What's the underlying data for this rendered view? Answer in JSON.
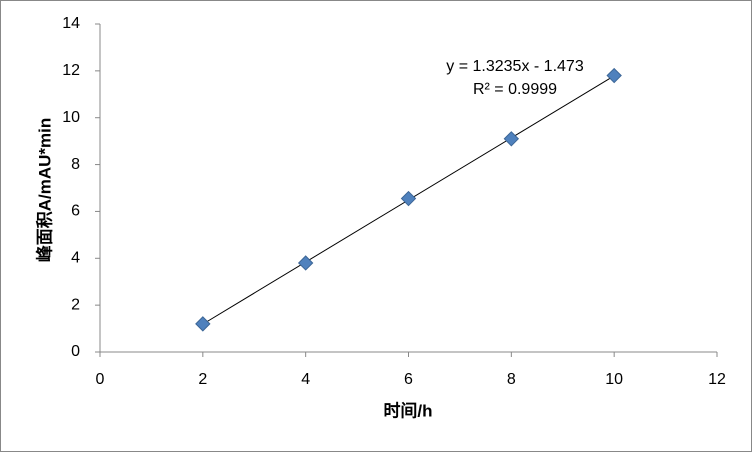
{
  "chart_data": {
    "type": "scatter",
    "x_label": "时间/h",
    "y_label": "峰面积A/mAU*min",
    "annotations": [
      "y = 1.3235x - 1.473",
      "R² = 0.9999"
    ],
    "series": [
      {
        "color": "#4f81bd",
        "x": [
          2,
          4,
          6,
          8,
          10
        ],
        "values": [
          1.2,
          3.8,
          6.55,
          9.1,
          11.8
        ]
      }
    ],
    "xlim": [
      0,
      12
    ],
    "xticks": [
      0,
      2,
      4,
      6,
      8,
      10,
      12
    ],
    "ylim": [
      0,
      14
    ],
    "yticks": [
      0,
      2,
      4,
      6,
      8,
      10,
      12,
      14
    ],
    "trendline": true,
    "grid": false
  }
}
